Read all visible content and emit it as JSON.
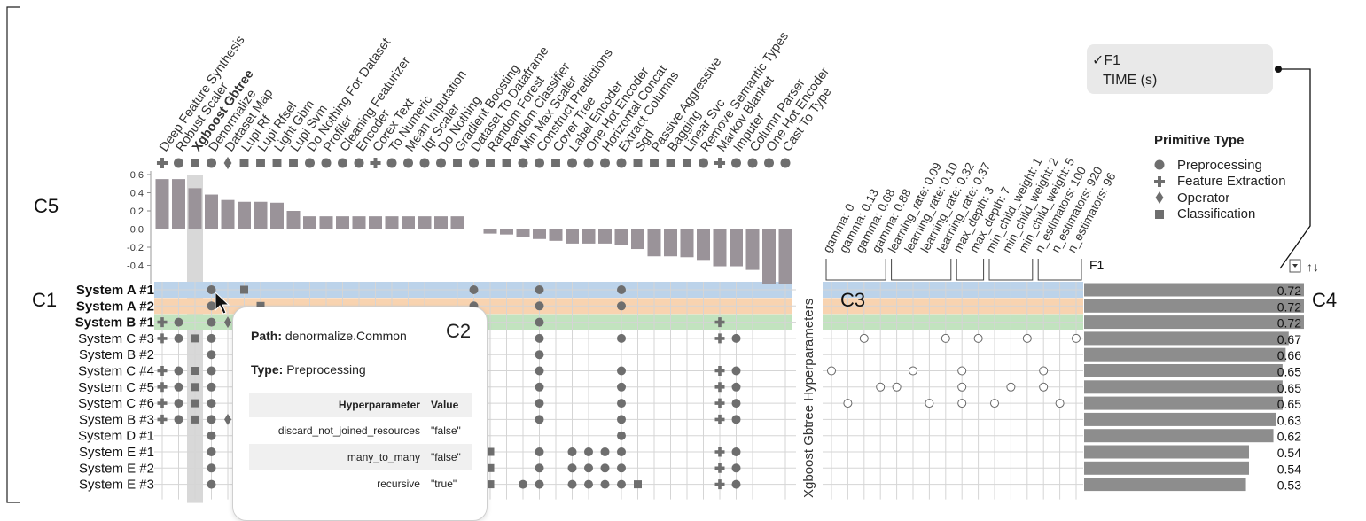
{
  "panel_labels": {
    "c1": "C1",
    "c2": "C2",
    "c3": "C3",
    "c4": "C4",
    "c5": "C5"
  },
  "primitives": [
    {
      "name": "Deep Feature Synthesis",
      "type": "feature",
      "corr": 0.55
    },
    {
      "name": "Robust Scaler",
      "type": "pre",
      "corr": 0.55
    },
    {
      "name": "Xgboost Gbtree",
      "type": "cls",
      "corr": 0.45,
      "bold": true
    },
    {
      "name": "Denormalize",
      "type": "pre",
      "corr": 0.38
    },
    {
      "name": "Dataset Map",
      "type": "op",
      "corr": 0.32
    },
    {
      "name": "Lupi Rf",
      "type": "cls",
      "corr": 0.3
    },
    {
      "name": "Lupi Rfsel",
      "type": "cls",
      "corr": 0.3
    },
    {
      "name": "Light Gbm",
      "type": "cls",
      "corr": 0.29
    },
    {
      "name": "Lupi Svm",
      "type": "cls",
      "corr": 0.2
    },
    {
      "name": "Do Nothing For Dataset",
      "type": "pre",
      "corr": 0.14
    },
    {
      "name": "Profiler",
      "type": "pre",
      "corr": 0.14
    },
    {
      "name": "Cleaning Featurizer",
      "type": "pre",
      "corr": 0.14
    },
    {
      "name": "Encoder",
      "type": "pre",
      "corr": 0.14
    },
    {
      "name": "Corex Text",
      "type": "feature",
      "corr": 0.14
    },
    {
      "name": "To Numeric",
      "type": "pre",
      "corr": 0.14
    },
    {
      "name": "Mean Imputation",
      "type": "pre",
      "corr": 0.14
    },
    {
      "name": "Iqr Scaler",
      "type": "pre",
      "corr": 0.14
    },
    {
      "name": "Do Nothing",
      "type": "pre",
      "corr": 0.14
    },
    {
      "name": "Gradient Boosting",
      "type": "cls",
      "corr": 0.14
    },
    {
      "name": "Dataset To Dataframe",
      "type": "pre",
      "corr": 0.0
    },
    {
      "name": "Random Forest",
      "type": "cls",
      "corr": -0.05
    },
    {
      "name": "Random Classifier",
      "type": "cls",
      "corr": -0.06
    },
    {
      "name": "Min Max Scaler",
      "type": "pre",
      "corr": -0.09
    },
    {
      "name": "Construct Predictions",
      "type": "pre",
      "corr": -0.11
    },
    {
      "name": "Cover Tree",
      "type": "cls",
      "corr": -0.13
    },
    {
      "name": "Label Encoder",
      "type": "pre",
      "corr": -0.16
    },
    {
      "name": "One Hot Encoder",
      "type": "pre",
      "corr": -0.16
    },
    {
      "name": "Horizontal Concat",
      "type": "pre",
      "corr": -0.16
    },
    {
      "name": "Extract Columns",
      "type": "pre",
      "corr": -0.18
    },
    {
      "name": "Sgd",
      "type": "cls",
      "corr": -0.22
    },
    {
      "name": "Passive Aggressive",
      "type": "cls",
      "corr": -0.3
    },
    {
      "name": "Bagging",
      "type": "cls",
      "corr": -0.3
    },
    {
      "name": "Linear Svc",
      "type": "cls",
      "corr": -0.31
    },
    {
      "name": "Remove Semantic Types",
      "type": "pre",
      "corr": -0.34
    },
    {
      "name": "Markov Blanket",
      "type": "feature",
      "corr": -0.41
    },
    {
      "name": "Imputer",
      "type": "pre",
      "corr": -0.41
    },
    {
      "name": "Column Parser",
      "type": "pre",
      "corr": -0.45
    },
    {
      "name": "One Hot Encoder",
      "type": "pre",
      "corr": -0.6
    },
    {
      "name": "Cast To Type",
      "type": "pre",
      "corr": -0.6
    }
  ],
  "corr_axis": {
    "ticks": [
      "0.6",
      "0.4",
      "0.2",
      "0.0",
      "-0.2",
      "-0.4"
    ],
    "min": -0.6,
    "max": 0.6
  },
  "pipelines": [
    {
      "name": "System A #1",
      "bold": true,
      "highlight": "#bcd3ea",
      "f1": 0.72,
      "f1_label": "0.72",
      "cols": [
        3,
        5,
        19,
        23,
        28
      ],
      "hp": []
    },
    {
      "name": "System A #2",
      "bold": true,
      "highlight": "#f8d3b0",
      "f1": 0.72,
      "f1_label": "0.72",
      "cols": [
        3,
        6,
        19,
        23,
        28
      ],
      "hp": []
    },
    {
      "name": "System B #1",
      "bold": true,
      "highlight": "#c2e3bf",
      "f1": 0.72,
      "f1_label": "0.72",
      "cols": [
        0,
        1,
        3,
        4,
        23,
        34
      ],
      "hp": []
    },
    {
      "name": "System C #3",
      "bold": false,
      "f1": 0.67,
      "f1_label": "0.67",
      "cols": [
        0,
        1,
        2,
        3,
        23,
        28,
        34,
        35
      ],
      "hp": [
        2,
        7,
        9,
        12,
        15
      ]
    },
    {
      "name": "System B #2",
      "bold": false,
      "f1": 0.66,
      "f1_label": "0.66",
      "cols": [
        3,
        23
      ],
      "hp": []
    },
    {
      "name": "System C #4",
      "bold": false,
      "f1": 0.65,
      "f1_label": "0.65",
      "cols": [
        0,
        1,
        2,
        3,
        23,
        28,
        34,
        35
      ],
      "hp": [
        0,
        5,
        8,
        13
      ]
    },
    {
      "name": "System C #5",
      "bold": false,
      "f1": 0.65,
      "f1_label": "0.65",
      "cols": [
        0,
        1,
        2,
        3,
        23,
        28,
        34,
        35
      ],
      "hp": [
        3,
        4,
        8,
        11,
        13
      ]
    },
    {
      "name": "System C #6",
      "bold": false,
      "f1": 0.65,
      "f1_label": "0.65",
      "cols": [
        0,
        1,
        2,
        3,
        23,
        28,
        34,
        35
      ],
      "hp": [
        1,
        6,
        8,
        10,
        14
      ]
    },
    {
      "name": "System B #3",
      "bold": false,
      "f1": 0.63,
      "f1_label": "0.63",
      "cols": [
        0,
        1,
        2,
        3,
        4,
        23,
        28,
        34,
        35
      ],
      "hp": []
    },
    {
      "name": "System D #1",
      "bold": false,
      "f1": 0.62,
      "f1_label": "0.62",
      "cols": [
        3,
        28
      ],
      "hp": []
    },
    {
      "name": "System E #1",
      "bold": false,
      "f1": 0.54,
      "f1_label": "0.54",
      "cols": [
        3,
        20,
        23,
        25,
        26,
        27,
        28,
        34,
        35
      ],
      "hp": []
    },
    {
      "name": "System E #2",
      "bold": false,
      "f1": 0.54,
      "f1_label": "0.54",
      "cols": [
        3,
        20,
        23,
        25,
        26,
        27,
        28,
        34,
        35
      ],
      "hp": []
    },
    {
      "name": "System E #3",
      "bold": false,
      "f1": 0.53,
      "f1_label": "0.53",
      "cols": [
        3,
        20,
        22,
        23,
        25,
        26,
        27,
        28,
        29,
        34,
        35
      ],
      "hp": []
    }
  ],
  "hyperparams": {
    "group_label": "Xgboost Gbtree Hyperparameters",
    "columns": [
      "gamma: 0",
      "gamma: 0.13",
      "gamma: 0.68",
      "gamma: 0.88",
      "learning_rate: 0.09",
      "learning_rate: 0.10",
      "learning_rate: 0.32",
      "learning_rate: 0.37",
      "max_depth: 3",
      "max_depth: 7",
      "min_child_weight: 1",
      "min_child_weight: 2",
      "min_child_weight: 5",
      "n_estimators: 100",
      "n_estimators: 920",
      "n_estimators: 96"
    ]
  },
  "metric": {
    "column_label": "F1",
    "options": [
      "F1",
      "TIME (s)"
    ],
    "selected": "F1",
    "check_glyph": "✓",
    "sort_glyph": "↑↓"
  },
  "legend": {
    "title": "Primitive Type",
    "items": [
      {
        "type": "pre",
        "label": "Preprocessing"
      },
      {
        "type": "feature",
        "label": "Feature Extraction"
      },
      {
        "type": "op",
        "label": "Operator"
      },
      {
        "type": "cls",
        "label": "Classification"
      }
    ]
  },
  "tooltip": {
    "path_key": "Path:",
    "path_value": "denormalize.Common",
    "type_key": "Type:",
    "type_value": "Preprocessing",
    "headers": [
      "Hyperparameter",
      "Value"
    ],
    "rows": [
      {
        "name": "discard_not_joined_resources",
        "value": "\"false\""
      },
      {
        "name": "many_to_many",
        "value": "\"false\""
      },
      {
        "name": "recursive",
        "value": "\"true\""
      }
    ]
  },
  "colors": {
    "mark": "#6e6e6e",
    "bar": "#9a9399",
    "grid": "#d5d5d5",
    "hp_bar": "#8d8d8d",
    "col_highlight": "#d8d8d8"
  }
}
